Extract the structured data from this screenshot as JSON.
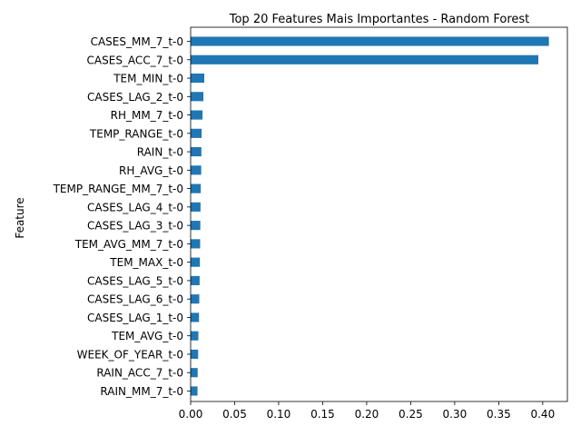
{
  "chart_data": {
    "type": "bar",
    "orientation": "horizontal",
    "title": "Top 20 Features Mais Importantes - Random Forest",
    "xlabel": "",
    "ylabel": "Feature",
    "xlim": [
      0,
      0.428
    ],
    "xticks": [
      0.0,
      0.05,
      0.1,
      0.15,
      0.2,
      0.25,
      0.3,
      0.35,
      0.4
    ],
    "xtick_labels": [
      "0.00",
      "0.05",
      "0.10",
      "0.15",
      "0.20",
      "0.25",
      "0.30",
      "0.35",
      "0.40"
    ],
    "grid": false,
    "bar_color": "#1f77b4",
    "categories": [
      "CASES_MM_7_t-0",
      "CASES_ACC_7_t-0",
      "TEM_MIN_t-0",
      "CASES_LAG_2_t-0",
      "RH_MM_7_t-0",
      "TEMP_RANGE_t-0",
      "RAIN_t-0",
      "RH_AVG_t-0",
      "TEMP_RANGE_MM_7_t-0",
      "CASES_LAG_4_t-0",
      "CASES_LAG_3_t-0",
      "TEM_AVG_MM_7_t-0",
      "TEM_MAX_t-0",
      "CASES_LAG_5_t-0",
      "CASES_LAG_6_t-0",
      "CASES_LAG_1_t-0",
      "TEM_AVG_t-0",
      "WEEK_OF_YEAR_t-0",
      "RAIN_ACC_7_t-0",
      "RAIN_MM_7_t-0"
    ],
    "values": [
      0.407,
      0.395,
      0.0155,
      0.0145,
      0.0135,
      0.0125,
      0.0122,
      0.012,
      0.0115,
      0.0112,
      0.011,
      0.0108,
      0.0105,
      0.0102,
      0.0098,
      0.0095,
      0.0088,
      0.0085,
      0.008,
      0.0078
    ]
  }
}
